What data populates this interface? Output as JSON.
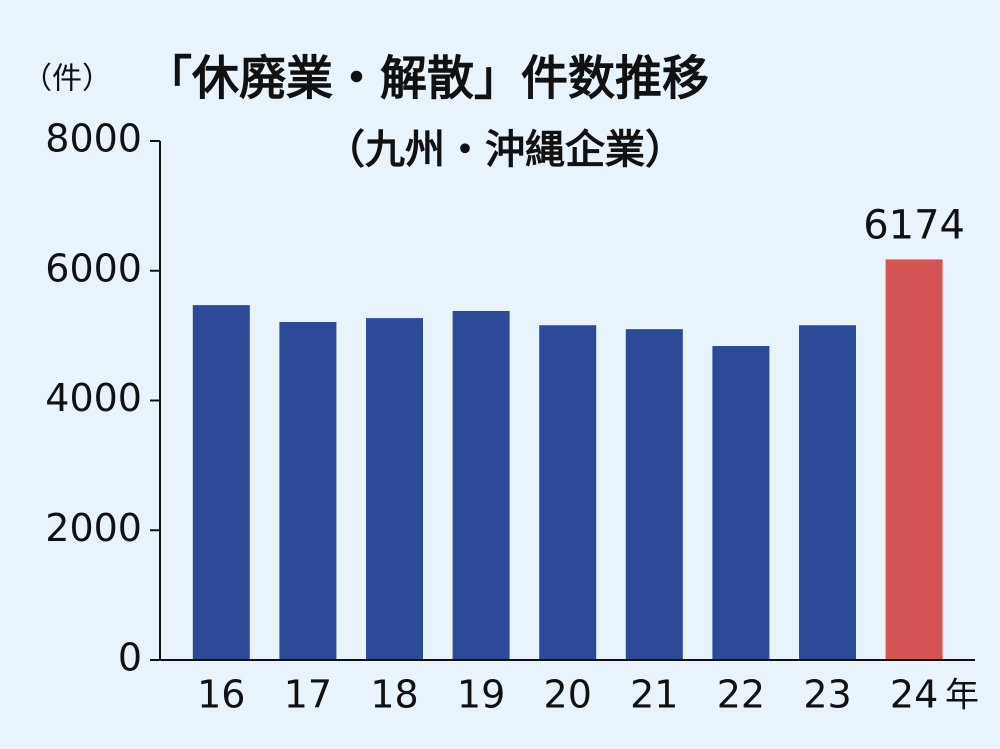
{
  "chart_data": {
    "type": "bar",
    "title": "「休廃業・解散」件数推移",
    "subtitle": "（九州・沖縄企業）",
    "y_label": "（件）",
    "x_label": "年",
    "categories": [
      "16",
      "17",
      "18",
      "19",
      "20",
      "21",
      "22",
      "23",
      "24"
    ],
    "values": [
      5470,
      5210,
      5270,
      5380,
      5160,
      5100,
      4840,
      5160,
      6174
    ],
    "value_labels": [
      null,
      null,
      null,
      null,
      null,
      null,
      null,
      null,
      "6174"
    ],
    "colors": [
      "#2c4a98",
      "#2c4a98",
      "#2c4a98",
      "#2c4a98",
      "#2c4a98",
      "#2c4a98",
      "#2c4a98",
      "#2c4a98",
      "#d45453"
    ],
    "ylim": [
      0,
      8000
    ],
    "yticks": [
      0,
      2000,
      4000,
      6000,
      8000
    ],
    "grid": false
  }
}
